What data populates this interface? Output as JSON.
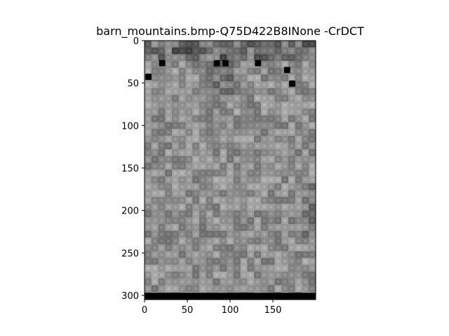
{
  "chart_data": {
    "type": "heatmap",
    "title": "barn_mountains.bmp-Q75D422B8INone -CrDCT",
    "xlabel": "",
    "ylabel": "",
    "xlim": [
      0,
      200
    ],
    "ylim": [
      305,
      0
    ],
    "x_ticks": [
      0,
      50,
      100,
      150
    ],
    "y_ticks": [
      0,
      50,
      100,
      150,
      200,
      250,
      300
    ],
    "x_tick_labels": [
      "0",
      "50",
      "100",
      "150"
    ],
    "y_tick_labels": [
      "0",
      "50",
      "100",
      "150",
      "200",
      "250",
      "300"
    ],
    "image_size": {
      "cols": 200,
      "rows": 304
    },
    "block_size": 8,
    "colormap": "gray",
    "colors": {
      "dark": "#000000",
      "mid": "#808080",
      "light": "#bdbdbd"
    },
    "grid": false,
    "legend": "none"
  }
}
